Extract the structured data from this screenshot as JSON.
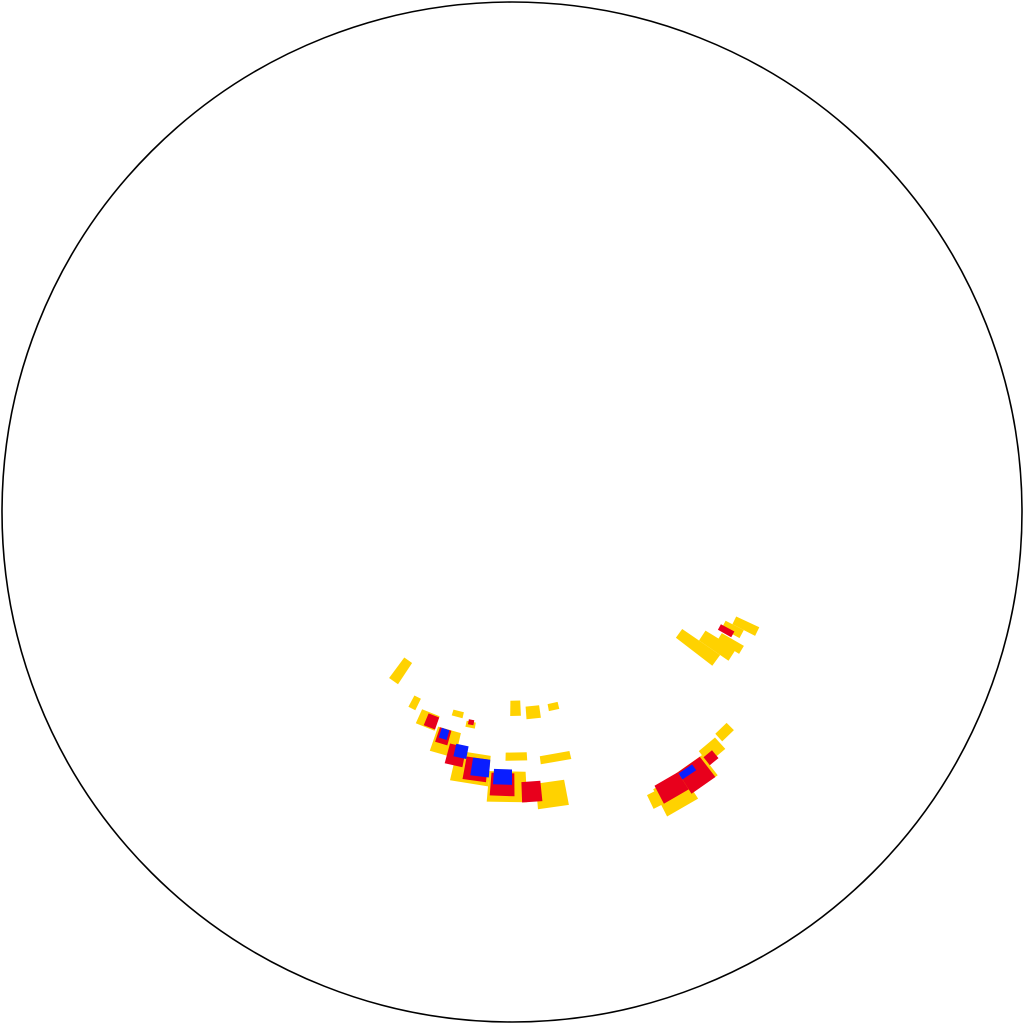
{
  "chart_data": {
    "type": "heatmap",
    "projection": "polar-stereonet",
    "title": "",
    "levels": [
      {
        "level": 1,
        "color": "#FFD200"
      },
      {
        "level": 2,
        "color": "#E8001C"
      },
      {
        "level": 3,
        "color": "#0A1EFF"
      }
    ],
    "boundary_color": "#000000",
    "cells": [
      {
        "az": 215,
        "r": 0.38,
        "daz": 3,
        "dr": 0.05,
        "level": 1
      },
      {
        "az": 207,
        "r": 0.42,
        "daz": 2,
        "dr": 0.025,
        "level": 1
      },
      {
        "az": 202,
        "r": 0.44,
        "daz": 5,
        "dr": 0.03,
        "level": 1
      },
      {
        "az": 196,
        "r": 0.47,
        "daz": 6,
        "dr": 0.05,
        "level": 1
      },
      {
        "az": 189,
        "r": 0.51,
        "daz": 8,
        "dr": 0.06,
        "level": 1
      },
      {
        "az": 181,
        "r": 0.54,
        "daz": 8,
        "dr": 0.06,
        "level": 1
      },
      {
        "az": 172,
        "r": 0.56,
        "daz": 6,
        "dr": 0.05,
        "level": 1
      },
      {
        "az": 201,
        "r": 0.44,
        "daz": 3,
        "dr": 0.025,
        "level": 2
      },
      {
        "az": 197,
        "r": 0.46,
        "daz": 3,
        "dr": 0.03,
        "level": 2
      },
      {
        "az": 193,
        "r": 0.49,
        "daz": 4,
        "dr": 0.04,
        "level": 2
      },
      {
        "az": 188,
        "r": 0.51,
        "daz": 5,
        "dr": 0.045,
        "level": 2
      },
      {
        "az": 182,
        "r": 0.535,
        "daz": 5,
        "dr": 0.045,
        "level": 2
      },
      {
        "az": 176,
        "r": 0.55,
        "daz": 4,
        "dr": 0.04,
        "level": 2
      },
      {
        "az": 197,
        "r": 0.455,
        "daz": 2,
        "dr": 0.02,
        "level": 3
      },
      {
        "az": 192,
        "r": 0.48,
        "daz": 3,
        "dr": 0.025,
        "level": 3
      },
      {
        "az": 187,
        "r": 0.505,
        "daz": 4,
        "dr": 0.035,
        "level": 3
      },
      {
        "az": 182,
        "r": 0.52,
        "daz": 4,
        "dr": 0.03,
        "level": 3
      },
      {
        "az": 195,
        "r": 0.41,
        "daz": 3,
        "dr": 0.012,
        "level": 1
      },
      {
        "az": 191,
        "r": 0.425,
        "daz": 2.5,
        "dr": 0.012,
        "level": 1
      },
      {
        "az": 191,
        "r": 0.42,
        "daz": 1.5,
        "dr": 0.01,
        "level": 2
      },
      {
        "az": 179,
        "r": 0.48,
        "daz": 5,
        "dr": 0.016,
        "level": 1
      },
      {
        "az": 170,
        "r": 0.49,
        "daz": 7,
        "dr": 0.016,
        "level": 1
      },
      {
        "az": 179,
        "r": 0.385,
        "daz": 3,
        "dr": 0.03,
        "level": 1
      },
      {
        "az": 174,
        "r": 0.395,
        "daz": 4,
        "dr": 0.025,
        "level": 1
      },
      {
        "az": 168,
        "r": 0.39,
        "daz": 3,
        "dr": 0.014,
        "level": 1
      },
      {
        "az": 153,
        "r": 0.63,
        "daz": 3,
        "dr": 0.03,
        "level": 1
      },
      {
        "az": 150,
        "r": 0.64,
        "daz": 6,
        "dr": 0.06,
        "level": 1
      },
      {
        "az": 145,
        "r": 0.63,
        "daz": 6,
        "dr": 0.05,
        "level": 1
      },
      {
        "az": 140,
        "r": 0.61,
        "daz": 4,
        "dr": 0.03,
        "level": 1
      },
      {
        "az": 136,
        "r": 0.6,
        "daz": 3,
        "dr": 0.02,
        "level": 1
      },
      {
        "az": 150,
        "r": 0.625,
        "daz": 5,
        "dr": 0.04,
        "level": 2
      },
      {
        "az": 145,
        "r": 0.63,
        "daz": 5,
        "dr": 0.05,
        "level": 2
      },
      {
        "az": 141,
        "r": 0.62,
        "daz": 2,
        "dr": 0.02,
        "level": 2
      },
      {
        "az": 146,
        "r": 0.615,
        "daz": 3,
        "dr": 0.014,
        "level": 3
      },
      {
        "az": 126,
        "r": 0.45,
        "daz": 3,
        "dr": 0.09,
        "level": 1
      },
      {
        "az": 123,
        "r": 0.48,
        "daz": 3,
        "dr": 0.07,
        "level": 1
      },
      {
        "az": 121,
        "r": 0.5,
        "daz": 2,
        "dr": 0.05,
        "level": 1
      },
      {
        "az": 118,
        "r": 0.49,
        "daz": 2,
        "dr": 0.04,
        "level": 1
      },
      {
        "az": 116,
        "r": 0.51,
        "daz": 2,
        "dr": 0.05,
        "level": 1
      },
      {
        "az": 119,
        "r": 0.48,
        "daz": 1.5,
        "dr": 0.03,
        "level": 2
      }
    ]
  }
}
